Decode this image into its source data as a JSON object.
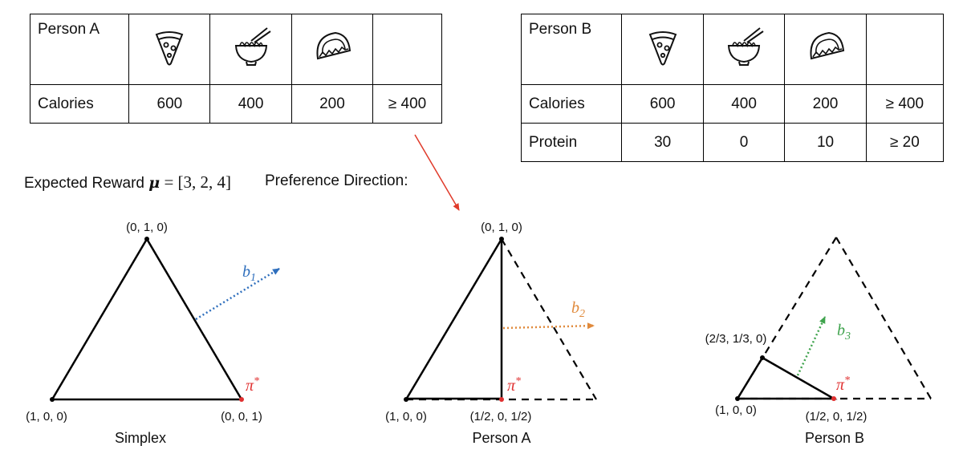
{
  "table_a": {
    "name": "Person A",
    "foods": [
      "pizza-icon",
      "ramen-icon",
      "taco-icon"
    ],
    "rows": [
      {
        "label": "Calories",
        "values": [
          "600",
          "400",
          "200",
          "≥ 400"
        ]
      }
    ]
  },
  "table_b": {
    "name": "Person B",
    "foods": [
      "pizza-icon",
      "ramen-icon",
      "taco-icon"
    ],
    "rows": [
      {
        "label": "Calories",
        "values": [
          "600",
          "400",
          "200",
          "≥ 400"
        ]
      },
      {
        "label": "Protein",
        "values": [
          "30",
          "0",
          "10",
          "≥ 20"
        ]
      }
    ]
  },
  "expected_reward": {
    "prefix": "Expected Reward",
    "symbol": "μ",
    "value": "= [3, 2, 4]"
  },
  "preference_direction": "Preference Direction:",
  "simplex": {
    "caption": "Simplex",
    "top": "(0, 1, 0)",
    "left": "(1, 0, 0)",
    "right": "(0, 0, 1)",
    "arrow": {
      "base": "b",
      "sub": "1"
    },
    "optimum": {
      "base": "π",
      "sup": "*"
    }
  },
  "person_a": {
    "caption": "Person A",
    "top": "(0, 1, 0)",
    "left": "(1, 0, 0)",
    "mid": "(1/2, 0, 1/2)",
    "arrow": {
      "base": "b",
      "sub": "2"
    },
    "optimum": {
      "base": "π",
      "sup": "*"
    }
  },
  "person_b": {
    "caption": "Person B",
    "vertex": "(2/3, 1/3, 0)",
    "left": "(1, 0, 0)",
    "mid": "(1/2, 0, 1/2)",
    "arrow": {
      "base": "b",
      "sub": "3"
    },
    "optimum": {
      "base": "π",
      "sup": "*"
    }
  },
  "colors": {
    "b1": "#2f6fbd",
    "b2": "#e08a3c",
    "b3": "#3fa34d",
    "optimum": "#e03030",
    "link_arrow": "#e03a2a"
  }
}
